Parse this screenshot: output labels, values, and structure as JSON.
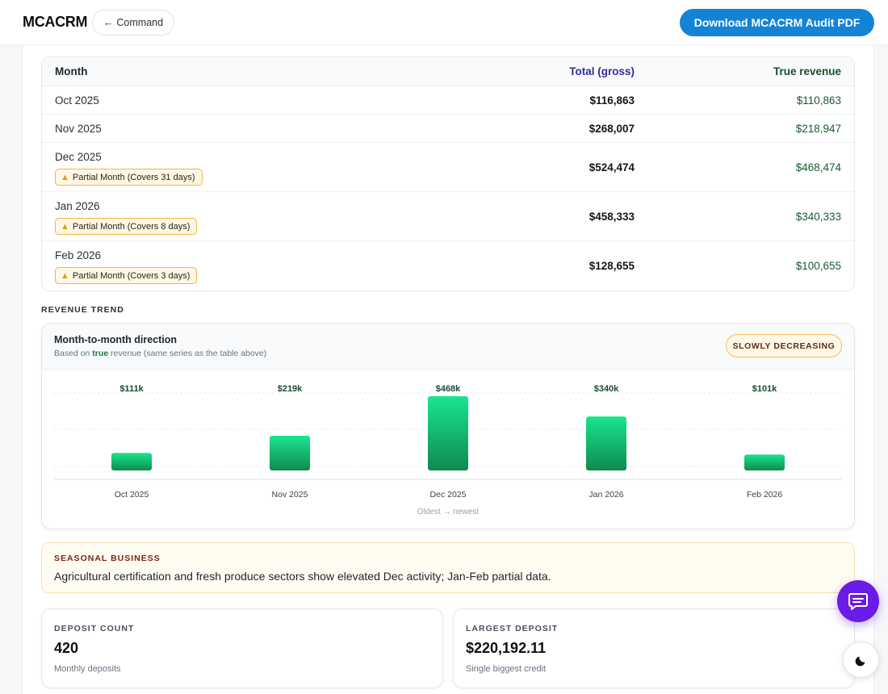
{
  "header": {
    "brand": "MCACRM",
    "command_label": "Command",
    "download_label": "Download MCACRM Audit PDF"
  },
  "table": {
    "columns": [
      "Month",
      "Total (gross)",
      "True revenue"
    ],
    "rows": [
      {
        "month": "Oct 2025",
        "gross": "$116,863",
        "true": "$110,863",
        "badge": ""
      },
      {
        "month": "Nov 2025",
        "gross": "$268,007",
        "true": "$218,947",
        "badge": ""
      },
      {
        "month": "Dec 2025",
        "gross": "$524,474",
        "true": "$468,474",
        "badge": "Partial Month (Covers 31 days)"
      },
      {
        "month": "Jan 2026",
        "gross": "$458,333",
        "true": "$340,333",
        "badge": "Partial Month (Covers 8 days)"
      },
      {
        "month": "Feb 2026",
        "gross": "$128,655",
        "true": "$100,655",
        "badge": "Partial Month (Covers 3 days)"
      }
    ]
  },
  "trend": {
    "section_label": "REVENUE TREND",
    "title": "Month-to-month direction",
    "subtitle_prefix": "Based on ",
    "subtitle_highlight": "true",
    "subtitle_suffix": " revenue (same series as the table above)",
    "status": "SLOWLY DECREASING",
    "axis_note": "Oldest → newest"
  },
  "chart_data": {
    "type": "bar",
    "categories": [
      "Oct 2025",
      "Nov 2025",
      "Dec 2025",
      "Jan 2026",
      "Feb 2026"
    ],
    "values": [
      110863,
      218947,
      468474,
      340333,
      100655
    ],
    "data_labels": [
      "$111k",
      "$219k",
      "$468k",
      "$340k",
      "$101k"
    ],
    "title": "",
    "xlabel": "Oldest → newest",
    "ylabel": "",
    "ylim": [
      0,
      468474
    ],
    "grid": true,
    "bar_color_top": "#19e58e",
    "bar_color_bottom": "#0f8a50"
  },
  "seasonal": {
    "label": "SEASONAL BUSINESS",
    "text": "Agricultural certification and fresh produce sectors show elevated Dec activity; Jan-Feb partial data."
  },
  "stats": [
    {
      "label": "DEPOSIT COUNT",
      "value": "420",
      "sub": "Monthly deposits"
    },
    {
      "label": "LARGEST DEPOSIT",
      "value": "$220,192.11",
      "sub": "Single biggest credit"
    }
  ],
  "colors": {
    "accent_blue": "#1483d6",
    "chat_purple": "#6a1ce6",
    "gross_header": "#2d2f9c",
    "true_value": "#1a5a32"
  },
  "icons": {
    "warning": "warning-icon",
    "chat": "chat-icon",
    "theme": "moon-icon",
    "back": "arrow-left-icon"
  }
}
